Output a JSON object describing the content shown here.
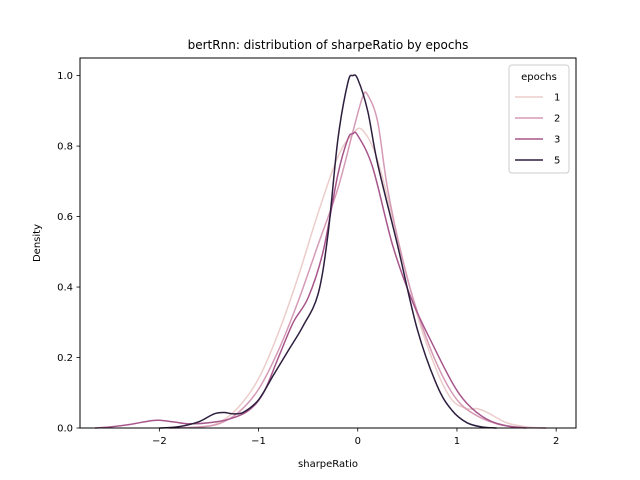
{
  "chart_data": {
    "type": "line",
    "title": "bertRnn: distribution of sharpeRatio by epochs",
    "xlabel": "sharpeRatio",
    "ylabel": "Density",
    "xlim": [
      -2.8,
      2.2
    ],
    "ylim": [
      0.0,
      1.05
    ],
    "xticks": [
      -2,
      -1,
      0,
      1,
      2
    ],
    "xtick_labels": [
      "−2",
      "−1",
      "0",
      "1",
      "2"
    ],
    "yticks": [
      0.0,
      0.2,
      0.4,
      0.6,
      0.8,
      1.0
    ],
    "ytick_labels": [
      "0.0",
      "0.2",
      "0.4",
      "0.6",
      "0.8",
      "1.0"
    ],
    "grid": false,
    "legend": {
      "title": "epochs",
      "position": "top-right"
    },
    "series": [
      {
        "name": "1",
        "color": "#ebcdcb",
        "points": [
          [
            -1.9,
            0.0
          ],
          [
            -1.6,
            0.003
          ],
          [
            -1.4,
            0.015
          ],
          [
            -1.2,
            0.06
          ],
          [
            -1.0,
            0.14
          ],
          [
            -0.8,
            0.27
          ],
          [
            -0.6,
            0.43
          ],
          [
            -0.4,
            0.61
          ],
          [
            -0.2,
            0.77
          ],
          [
            -0.05,
            0.835
          ],
          [
            0.05,
            0.845
          ],
          [
            0.2,
            0.76
          ],
          [
            0.4,
            0.54
          ],
          [
            0.6,
            0.32
          ],
          [
            0.8,
            0.16
          ],
          [
            0.95,
            0.08
          ],
          [
            1.1,
            0.055
          ],
          [
            1.2,
            0.055
          ],
          [
            1.3,
            0.045
          ],
          [
            1.5,
            0.015
          ],
          [
            1.7,
            0.003
          ],
          [
            1.9,
            0.0
          ]
        ]
      },
      {
        "name": "2",
        "color": "#d59ab5",
        "points": [
          [
            -1.9,
            0.0
          ],
          [
            -1.6,
            0.003
          ],
          [
            -1.4,
            0.012
          ],
          [
            -1.2,
            0.045
          ],
          [
            -1.0,
            0.11
          ],
          [
            -0.8,
            0.22
          ],
          [
            -0.6,
            0.36
          ],
          [
            -0.4,
            0.52
          ],
          [
            -0.2,
            0.68
          ],
          [
            -0.05,
            0.84
          ],
          [
            0.05,
            0.94
          ],
          [
            0.1,
            0.945
          ],
          [
            0.2,
            0.87
          ],
          [
            0.3,
            0.68
          ],
          [
            0.45,
            0.48
          ],
          [
            0.6,
            0.33
          ],
          [
            0.8,
            0.18
          ],
          [
            1.0,
            0.08
          ],
          [
            1.2,
            0.035
          ],
          [
            1.4,
            0.012
          ],
          [
            1.6,
            0.003
          ],
          [
            1.9,
            0.0
          ]
        ]
      },
      {
        "name": "3",
        "color": "#a7568b",
        "points": [
          [
            -2.65,
            0.0
          ],
          [
            -2.5,
            0.003
          ],
          [
            -2.3,
            0.01
          ],
          [
            -2.1,
            0.02
          ],
          [
            -2.0,
            0.022
          ],
          [
            -1.85,
            0.017
          ],
          [
            -1.7,
            0.012
          ],
          [
            -1.5,
            0.015
          ],
          [
            -1.3,
            0.025
          ],
          [
            -1.1,
            0.05
          ],
          [
            -0.95,
            0.1
          ],
          [
            -0.8,
            0.2
          ],
          [
            -0.65,
            0.3
          ],
          [
            -0.5,
            0.37
          ],
          [
            -0.35,
            0.5
          ],
          [
            -0.2,
            0.72
          ],
          [
            -0.1,
            0.82
          ],
          [
            -0.05,
            0.835
          ],
          [
            0.0,
            0.83
          ],
          [
            0.15,
            0.74
          ],
          [
            0.35,
            0.52
          ],
          [
            0.55,
            0.36
          ],
          [
            0.75,
            0.24
          ],
          [
            0.95,
            0.13
          ],
          [
            1.1,
            0.07
          ],
          [
            1.3,
            0.025
          ],
          [
            1.5,
            0.006
          ],
          [
            1.7,
            0.0
          ]
        ]
      },
      {
        "name": "5",
        "color": "#2d1e3e",
        "points": [
          [
            -2.0,
            0.0
          ],
          [
            -1.8,
            0.004
          ],
          [
            -1.6,
            0.018
          ],
          [
            -1.45,
            0.04
          ],
          [
            -1.35,
            0.044
          ],
          [
            -1.25,
            0.04
          ],
          [
            -1.15,
            0.045
          ],
          [
            -1.0,
            0.08
          ],
          [
            -0.85,
            0.15
          ],
          [
            -0.7,
            0.22
          ],
          [
            -0.55,
            0.29
          ],
          [
            -0.4,
            0.38
          ],
          [
            -0.3,
            0.55
          ],
          [
            -0.2,
            0.82
          ],
          [
            -0.1,
            0.98
          ],
          [
            -0.05,
            1.0
          ],
          [
            0.0,
            0.99
          ],
          [
            0.1,
            0.9
          ],
          [
            0.2,
            0.75
          ],
          [
            0.4,
            0.52
          ],
          [
            0.6,
            0.28
          ],
          [
            0.8,
            0.12
          ],
          [
            0.95,
            0.05
          ],
          [
            1.1,
            0.015
          ],
          [
            1.25,
            0.003
          ],
          [
            1.4,
            0.0
          ]
        ]
      }
    ]
  }
}
